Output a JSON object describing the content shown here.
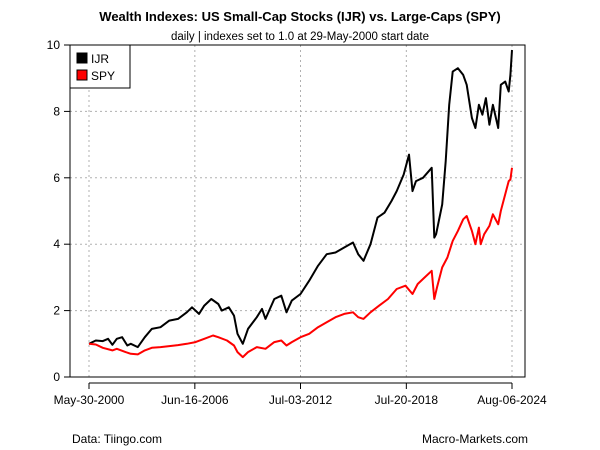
{
  "chart_data": {
    "type": "line",
    "title": "Wealth Indexes: US Small-Cap Stocks (IJR) vs. Large-Caps (SPY)",
    "subtitle": "daily | indexes set to 1.0 at 29-May-2000 start date",
    "xlabel": "",
    "ylabel": "",
    "ylim": [
      0,
      10
    ],
    "y_ticks": [
      0,
      2,
      4,
      6,
      8,
      10
    ],
    "x_range": [
      2000.41,
      2024.59
    ],
    "x_ticks": [
      {
        "label": "May-30-2000",
        "x": 2000.41
      },
      {
        "label": "Jun-16-2006",
        "x": 2006.46
      },
      {
        "label": "Jul-03-2012",
        "x": 2012.5
      },
      {
        "label": "Jul-20-2018",
        "x": 2018.55
      },
      {
        "label": "Aug-06-2024",
        "x": 2024.59
      }
    ],
    "grid": true,
    "legend_position": "top-left",
    "series": [
      {
        "name": "IJR",
        "color": "#000000",
        "points": [
          [
            2000.41,
            1.0
          ],
          [
            2000.8,
            1.1
          ],
          [
            2001.2,
            1.08
          ],
          [
            2001.5,
            1.15
          ],
          [
            2001.75,
            0.97
          ],
          [
            2002.0,
            1.15
          ],
          [
            2002.3,
            1.2
          ],
          [
            2002.6,
            0.95
          ],
          [
            2002.8,
            1.0
          ],
          [
            2003.2,
            0.9
          ],
          [
            2003.6,
            1.2
          ],
          [
            2004.0,
            1.45
          ],
          [
            2004.5,
            1.5
          ],
          [
            2005.0,
            1.7
          ],
          [
            2005.5,
            1.75
          ],
          [
            2006.0,
            1.95
          ],
          [
            2006.3,
            2.1
          ],
          [
            2006.7,
            1.9
          ],
          [
            2007.0,
            2.15
          ],
          [
            2007.4,
            2.35
          ],
          [
            2007.8,
            2.2
          ],
          [
            2008.0,
            2.0
          ],
          [
            2008.4,
            2.1
          ],
          [
            2008.7,
            1.85
          ],
          [
            2008.9,
            1.3
          ],
          [
            2009.2,
            1.0
          ],
          [
            2009.5,
            1.45
          ],
          [
            2010.0,
            1.8
          ],
          [
            2010.3,
            2.05
          ],
          [
            2010.5,
            1.75
          ],
          [
            2011.0,
            2.35
          ],
          [
            2011.4,
            2.45
          ],
          [
            2011.7,
            1.95
          ],
          [
            2012.0,
            2.3
          ],
          [
            2012.5,
            2.5
          ],
          [
            2013.0,
            2.9
          ],
          [
            2013.5,
            3.35
          ],
          [
            2014.0,
            3.7
          ],
          [
            2014.5,
            3.75
          ],
          [
            2015.0,
            3.9
          ],
          [
            2015.5,
            4.05
          ],
          [
            2015.8,
            3.7
          ],
          [
            2016.1,
            3.5
          ],
          [
            2016.5,
            4.0
          ],
          [
            2016.9,
            4.8
          ],
          [
            2017.3,
            4.95
          ],
          [
            2017.7,
            5.3
          ],
          [
            2018.0,
            5.6
          ],
          [
            2018.4,
            6.1
          ],
          [
            2018.7,
            6.7
          ],
          [
            2018.9,
            5.6
          ],
          [
            2019.1,
            5.9
          ],
          [
            2019.5,
            6.0
          ],
          [
            2020.0,
            6.3
          ],
          [
            2020.15,
            4.2
          ],
          [
            2020.25,
            4.3
          ],
          [
            2020.6,
            5.2
          ],
          [
            2020.8,
            6.5
          ],
          [
            2021.0,
            8.2
          ],
          [
            2021.2,
            9.2
          ],
          [
            2021.5,
            9.3
          ],
          [
            2021.8,
            9.1
          ],
          [
            2022.0,
            8.8
          ],
          [
            2022.3,
            7.8
          ],
          [
            2022.5,
            7.5
          ],
          [
            2022.7,
            8.2
          ],
          [
            2022.9,
            7.9
          ],
          [
            2023.1,
            8.4
          ],
          [
            2023.3,
            7.6
          ],
          [
            2023.5,
            8.2
          ],
          [
            2023.8,
            7.5
          ],
          [
            2023.95,
            8.8
          ],
          [
            2024.2,
            8.9
          ],
          [
            2024.4,
            8.6
          ],
          [
            2024.5,
            9.1
          ],
          [
            2024.59,
            9.85
          ]
        ]
      },
      {
        "name": "SPY",
        "color": "#ff0000",
        "points": [
          [
            2000.41,
            1.0
          ],
          [
            2000.8,
            0.98
          ],
          [
            2001.2,
            0.88
          ],
          [
            2001.75,
            0.8
          ],
          [
            2002.0,
            0.85
          ],
          [
            2002.5,
            0.75
          ],
          [
            2002.8,
            0.7
          ],
          [
            2003.2,
            0.68
          ],
          [
            2003.6,
            0.8
          ],
          [
            2004.0,
            0.88
          ],
          [
            2004.5,
            0.9
          ],
          [
            2005.0,
            0.93
          ],
          [
            2005.5,
            0.96
          ],
          [
            2006.0,
            1.0
          ],
          [
            2006.5,
            1.05
          ],
          [
            2007.0,
            1.15
          ],
          [
            2007.5,
            1.25
          ],
          [
            2007.8,
            1.2
          ],
          [
            2008.3,
            1.1
          ],
          [
            2008.7,
            0.95
          ],
          [
            2008.9,
            0.75
          ],
          [
            2009.2,
            0.6
          ],
          [
            2009.5,
            0.75
          ],
          [
            2010.0,
            0.9
          ],
          [
            2010.5,
            0.85
          ],
          [
            2011.0,
            1.05
          ],
          [
            2011.4,
            1.1
          ],
          [
            2011.7,
            0.95
          ],
          [
            2012.0,
            1.05
          ],
          [
            2012.5,
            1.2
          ],
          [
            2013.0,
            1.3
          ],
          [
            2013.5,
            1.5
          ],
          [
            2014.0,
            1.65
          ],
          [
            2014.5,
            1.8
          ],
          [
            2015.0,
            1.9
          ],
          [
            2015.5,
            1.95
          ],
          [
            2015.8,
            1.8
          ],
          [
            2016.1,
            1.75
          ],
          [
            2016.5,
            1.95
          ],
          [
            2017.0,
            2.15
          ],
          [
            2017.5,
            2.35
          ],
          [
            2018.0,
            2.65
          ],
          [
            2018.5,
            2.75
          ],
          [
            2018.9,
            2.5
          ],
          [
            2019.2,
            2.8
          ],
          [
            2019.6,
            3.0
          ],
          [
            2020.0,
            3.2
          ],
          [
            2020.15,
            2.35
          ],
          [
            2020.3,
            2.7
          ],
          [
            2020.6,
            3.3
          ],
          [
            2020.9,
            3.6
          ],
          [
            2021.2,
            4.1
          ],
          [
            2021.5,
            4.4
          ],
          [
            2021.8,
            4.75
          ],
          [
            2022.0,
            4.85
          ],
          [
            2022.3,
            4.4
          ],
          [
            2022.5,
            4.0
          ],
          [
            2022.7,
            4.5
          ],
          [
            2022.8,
            4.0
          ],
          [
            2023.0,
            4.3
          ],
          [
            2023.3,
            4.55
          ],
          [
            2023.5,
            4.9
          ],
          [
            2023.8,
            4.6
          ],
          [
            2023.95,
            5.0
          ],
          [
            2024.2,
            5.5
          ],
          [
            2024.4,
            5.9
          ],
          [
            2024.5,
            5.95
          ],
          [
            2024.59,
            6.3
          ]
        ]
      }
    ]
  },
  "footer": {
    "source": "Data: Tiingo.com",
    "site": "Macro-Markets.com"
  }
}
